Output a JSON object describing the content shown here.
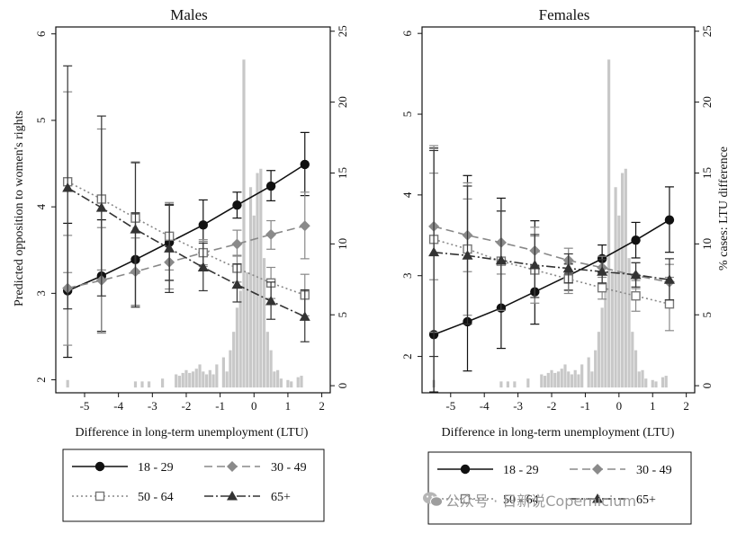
{
  "figure": {
    "x_axis_title": "Difference in long-term unemployment (LTU)",
    "left_axis_title": "Predicted opposition to women's rights",
    "right_axis_title": "% cases: LTU difference",
    "watermark": "公众号 · 日新说Copernicium",
    "watermark_icon": "wechat-icon"
  },
  "chart_data": [
    {
      "type": "line",
      "title": "Males",
      "x_ticks": [
        -5,
        -4,
        -3,
        -2,
        -1,
        0,
        1,
        2
      ],
      "xlim": [
        -5.85,
        2.25
      ],
      "ylim": [
        1.85,
        6.08
      ],
      "y_ticks": [
        2,
        3,
        4,
        5,
        6
      ],
      "y2lim": [
        -0.5,
        25.3
      ],
      "y2_ticks": [
        0,
        5,
        10,
        15,
        20,
        25
      ],
      "xlabel": "Difference in long-term unemployment (LTU)",
      "ylabel": "Predicted opposition to women's rights",
      "y2label": "",
      "x": [
        -5.5,
        -4.5,
        -3.5,
        -2.5,
        -1.5,
        -0.5,
        0.5,
        1.5
      ],
      "series": [
        {
          "name": "18 - 29",
          "marker": "circle",
          "dash": "solid",
          "color": "#111111",
          "values": [
            3.03,
            3.2,
            3.39,
            3.59,
            3.79,
            4.02,
            4.24,
            4.49
          ],
          "ci_low": [
            2.26,
            2.56,
            2.86,
            3.15,
            3.49,
            3.87,
            4.07,
            4.13
          ],
          "ci_high": [
            3.81,
            3.85,
            3.93,
            4.02,
            4.08,
            4.17,
            4.42,
            4.86
          ]
        },
        {
          "name": "30 - 49",
          "marker": "diamond",
          "dash": "longdash",
          "color": "#888888",
          "values": [
            3.06,
            3.15,
            3.25,
            3.36,
            3.47,
            3.57,
            3.68,
            3.78
          ],
          "ci_low": [
            2.4,
            2.54,
            2.86,
            3.05,
            3.33,
            3.43,
            3.51,
            3.4
          ],
          "ci_high": [
            3.67,
            3.76,
            3.64,
            3.66,
            3.6,
            3.73,
            3.84,
            4.17
          ]
        },
        {
          "name": "50 - 64",
          "marker": "square-open",
          "dash": "dotted",
          "color": "#888888",
          "values": [
            4.29,
            4.09,
            3.87,
            3.66,
            3.47,
            3.29,
            3.12,
            2.98
          ],
          "ci_low": [
            3.24,
            3.27,
            3.23,
            3.27,
            3.31,
            3.13,
            2.94,
            2.74
          ],
          "ci_high": [
            5.33,
            4.9,
            4.52,
            4.05,
            3.62,
            3.44,
            3.3,
            3.22
          ]
        },
        {
          "name": "65+",
          "marker": "triangle",
          "dash": "dashdot",
          "color": "#333333",
          "values": [
            4.22,
            3.99,
            3.74,
            3.52,
            3.3,
            3.1,
            2.91,
            2.73
          ],
          "ci_low": [
            2.82,
            2.97,
            2.84,
            3.01,
            3.03,
            2.9,
            2.7,
            2.44
          ],
          "ci_high": [
            5.63,
            5.05,
            4.51,
            4.03,
            3.58,
            3.34,
            3.13,
            3.04
          ]
        }
      ],
      "histogram": {
        "x": [
          -5.5,
          -3.5,
          -3.3,
          -3.1,
          -2.7,
          -2.3,
          -2.2,
          -2.1,
          -2.0,
          -1.9,
          -1.8,
          -1.7,
          -1.6,
          -1.5,
          -1.4,
          -1.3,
          -1.2,
          -1.1,
          -0.9,
          -0.8,
          -0.7,
          -0.6,
          -0.5,
          -0.4,
          -0.3,
          -0.2,
          -0.1,
          0.0,
          0.1,
          0.2,
          0.3,
          0.4,
          0.5,
          0.6,
          0.7,
          0.8,
          1.0,
          1.1,
          1.3,
          1.4
        ],
        "values": [
          0.4,
          0.3,
          0.3,
          0.3,
          0.5,
          0.8,
          0.7,
          0.9,
          1.1,
          0.9,
          1.0,
          1.2,
          1.5,
          1.0,
          0.8,
          1.1,
          0.8,
          1.5,
          2.0,
          1.0,
          2.5,
          3.8,
          5.5,
          6.7,
          23.0,
          8.0,
          14.0,
          12.0,
          15.0,
          15.3,
          9.0,
          3.8,
          2.5,
          1.0,
          1.1,
          0.5,
          0.4,
          0.3,
          0.6,
          0.7
        ],
        "color": "#c8c8c8"
      },
      "legend": {
        "placement": "bottom",
        "entries": [
          "18 - 29",
          "30 - 49",
          "50 - 64",
          "65+"
        ]
      }
    },
    {
      "type": "line",
      "title": "Females",
      "x_ticks": [
        -5,
        -4,
        -3,
        -2,
        -1,
        0,
        1,
        2
      ],
      "xlim": [
        -5.85,
        2.25
      ],
      "ylim": [
        1.55,
        6.08
      ],
      "y_ticks": [
        2,
        3,
        4,
        5,
        6
      ],
      "y2lim": [
        -0.5,
        25.3
      ],
      "y2_ticks": [
        0,
        5,
        10,
        15,
        20,
        25
      ],
      "xlabel": "Difference in long-term unemployment (LTU)",
      "ylabel": "",
      "y2label": "% cases: LTU difference",
      "x": [
        -5.5,
        -4.5,
        -3.5,
        -2.5,
        -1.5,
        -0.5,
        0.5,
        1.5
      ],
      "series": [
        {
          "name": "18 - 29",
          "marker": "circle",
          "dash": "solid",
          "color": "#111111",
          "values": [
            2.27,
            2.43,
            2.6,
            2.8,
            3.0,
            3.21,
            3.44,
            3.69
          ],
          "ci_low": [
            1.56,
            1.82,
            2.1,
            2.4,
            2.82,
            3.04,
            3.22,
            3.29
          ],
          "ci_high": [
            4.58,
            4.24,
            3.96,
            3.68,
            3.15,
            3.38,
            3.66,
            4.1
          ]
        },
        {
          "name": "30 - 49",
          "marker": "diamond",
          "dash": "longdash",
          "color": "#888888",
          "values": [
            3.61,
            3.5,
            3.41,
            3.31,
            3.19,
            3.1,
            3.0,
            2.92
          ],
          "ci_low": [
            2.95,
            3.05,
            3.02,
            3.02,
            3.03,
            2.98,
            2.84,
            2.69
          ],
          "ci_high": [
            4.27,
            3.95,
            3.8,
            3.6,
            3.34,
            3.24,
            3.16,
            3.14
          ]
        },
        {
          "name": "50 - 64",
          "marker": "square-open",
          "dash": "dotted",
          "color": "#888888",
          "values": [
            3.45,
            3.33,
            3.18,
            3.07,
            2.96,
            2.85,
            2.75,
            2.65
          ],
          "ci_low": [
            2.3,
            2.51,
            2.57,
            2.66,
            2.78,
            2.71,
            2.56,
            2.32
          ],
          "ci_high": [
            4.61,
            4.15,
            3.8,
            3.49,
            3.14,
            3.02,
            2.94,
            2.98
          ]
        },
        {
          "name": "65+",
          "marker": "triangle",
          "dash": "dashdot",
          "color": "#333333",
          "values": [
            3.29,
            3.25,
            3.19,
            3.13,
            3.09,
            3.05,
            3.01,
            2.95
          ],
          "ci_low": [
            2.0,
            2.4,
            2.58,
            2.73,
            2.91,
            2.91,
            2.86,
            2.7
          ],
          "ci_high": [
            4.55,
            4.11,
            3.8,
            3.51,
            3.27,
            3.2,
            3.16,
            3.21
          ]
        }
      ],
      "histogram": {
        "x": [
          -5.5,
          -3.5,
          -3.3,
          -3.1,
          -2.7,
          -2.3,
          -2.2,
          -2.1,
          -2.0,
          -1.9,
          -1.8,
          -1.7,
          -1.6,
          -1.5,
          -1.4,
          -1.3,
          -1.2,
          -1.1,
          -0.9,
          -0.8,
          -0.7,
          -0.6,
          -0.5,
          -0.4,
          -0.3,
          -0.2,
          -0.1,
          0.0,
          0.1,
          0.2,
          0.3,
          0.4,
          0.5,
          0.6,
          0.7,
          0.8,
          1.0,
          1.1,
          1.3,
          1.4
        ],
        "values": [
          0.4,
          0.3,
          0.3,
          0.3,
          0.5,
          0.8,
          0.7,
          0.9,
          1.1,
          0.9,
          1.0,
          1.2,
          1.5,
          1.0,
          0.8,
          1.1,
          0.8,
          1.5,
          2.0,
          1.0,
          2.5,
          3.8,
          5.5,
          6.7,
          23.0,
          8.0,
          14.0,
          12.0,
          15.0,
          15.3,
          9.0,
          3.8,
          2.5,
          1.0,
          1.1,
          0.5,
          0.4,
          0.3,
          0.6,
          0.7
        ],
        "color": "#c8c8c8"
      },
      "legend": {
        "placement": "bottom",
        "entries": [
          "18 - 29",
          "30 - 49",
          "50 - 64",
          "65+"
        ]
      }
    }
  ]
}
